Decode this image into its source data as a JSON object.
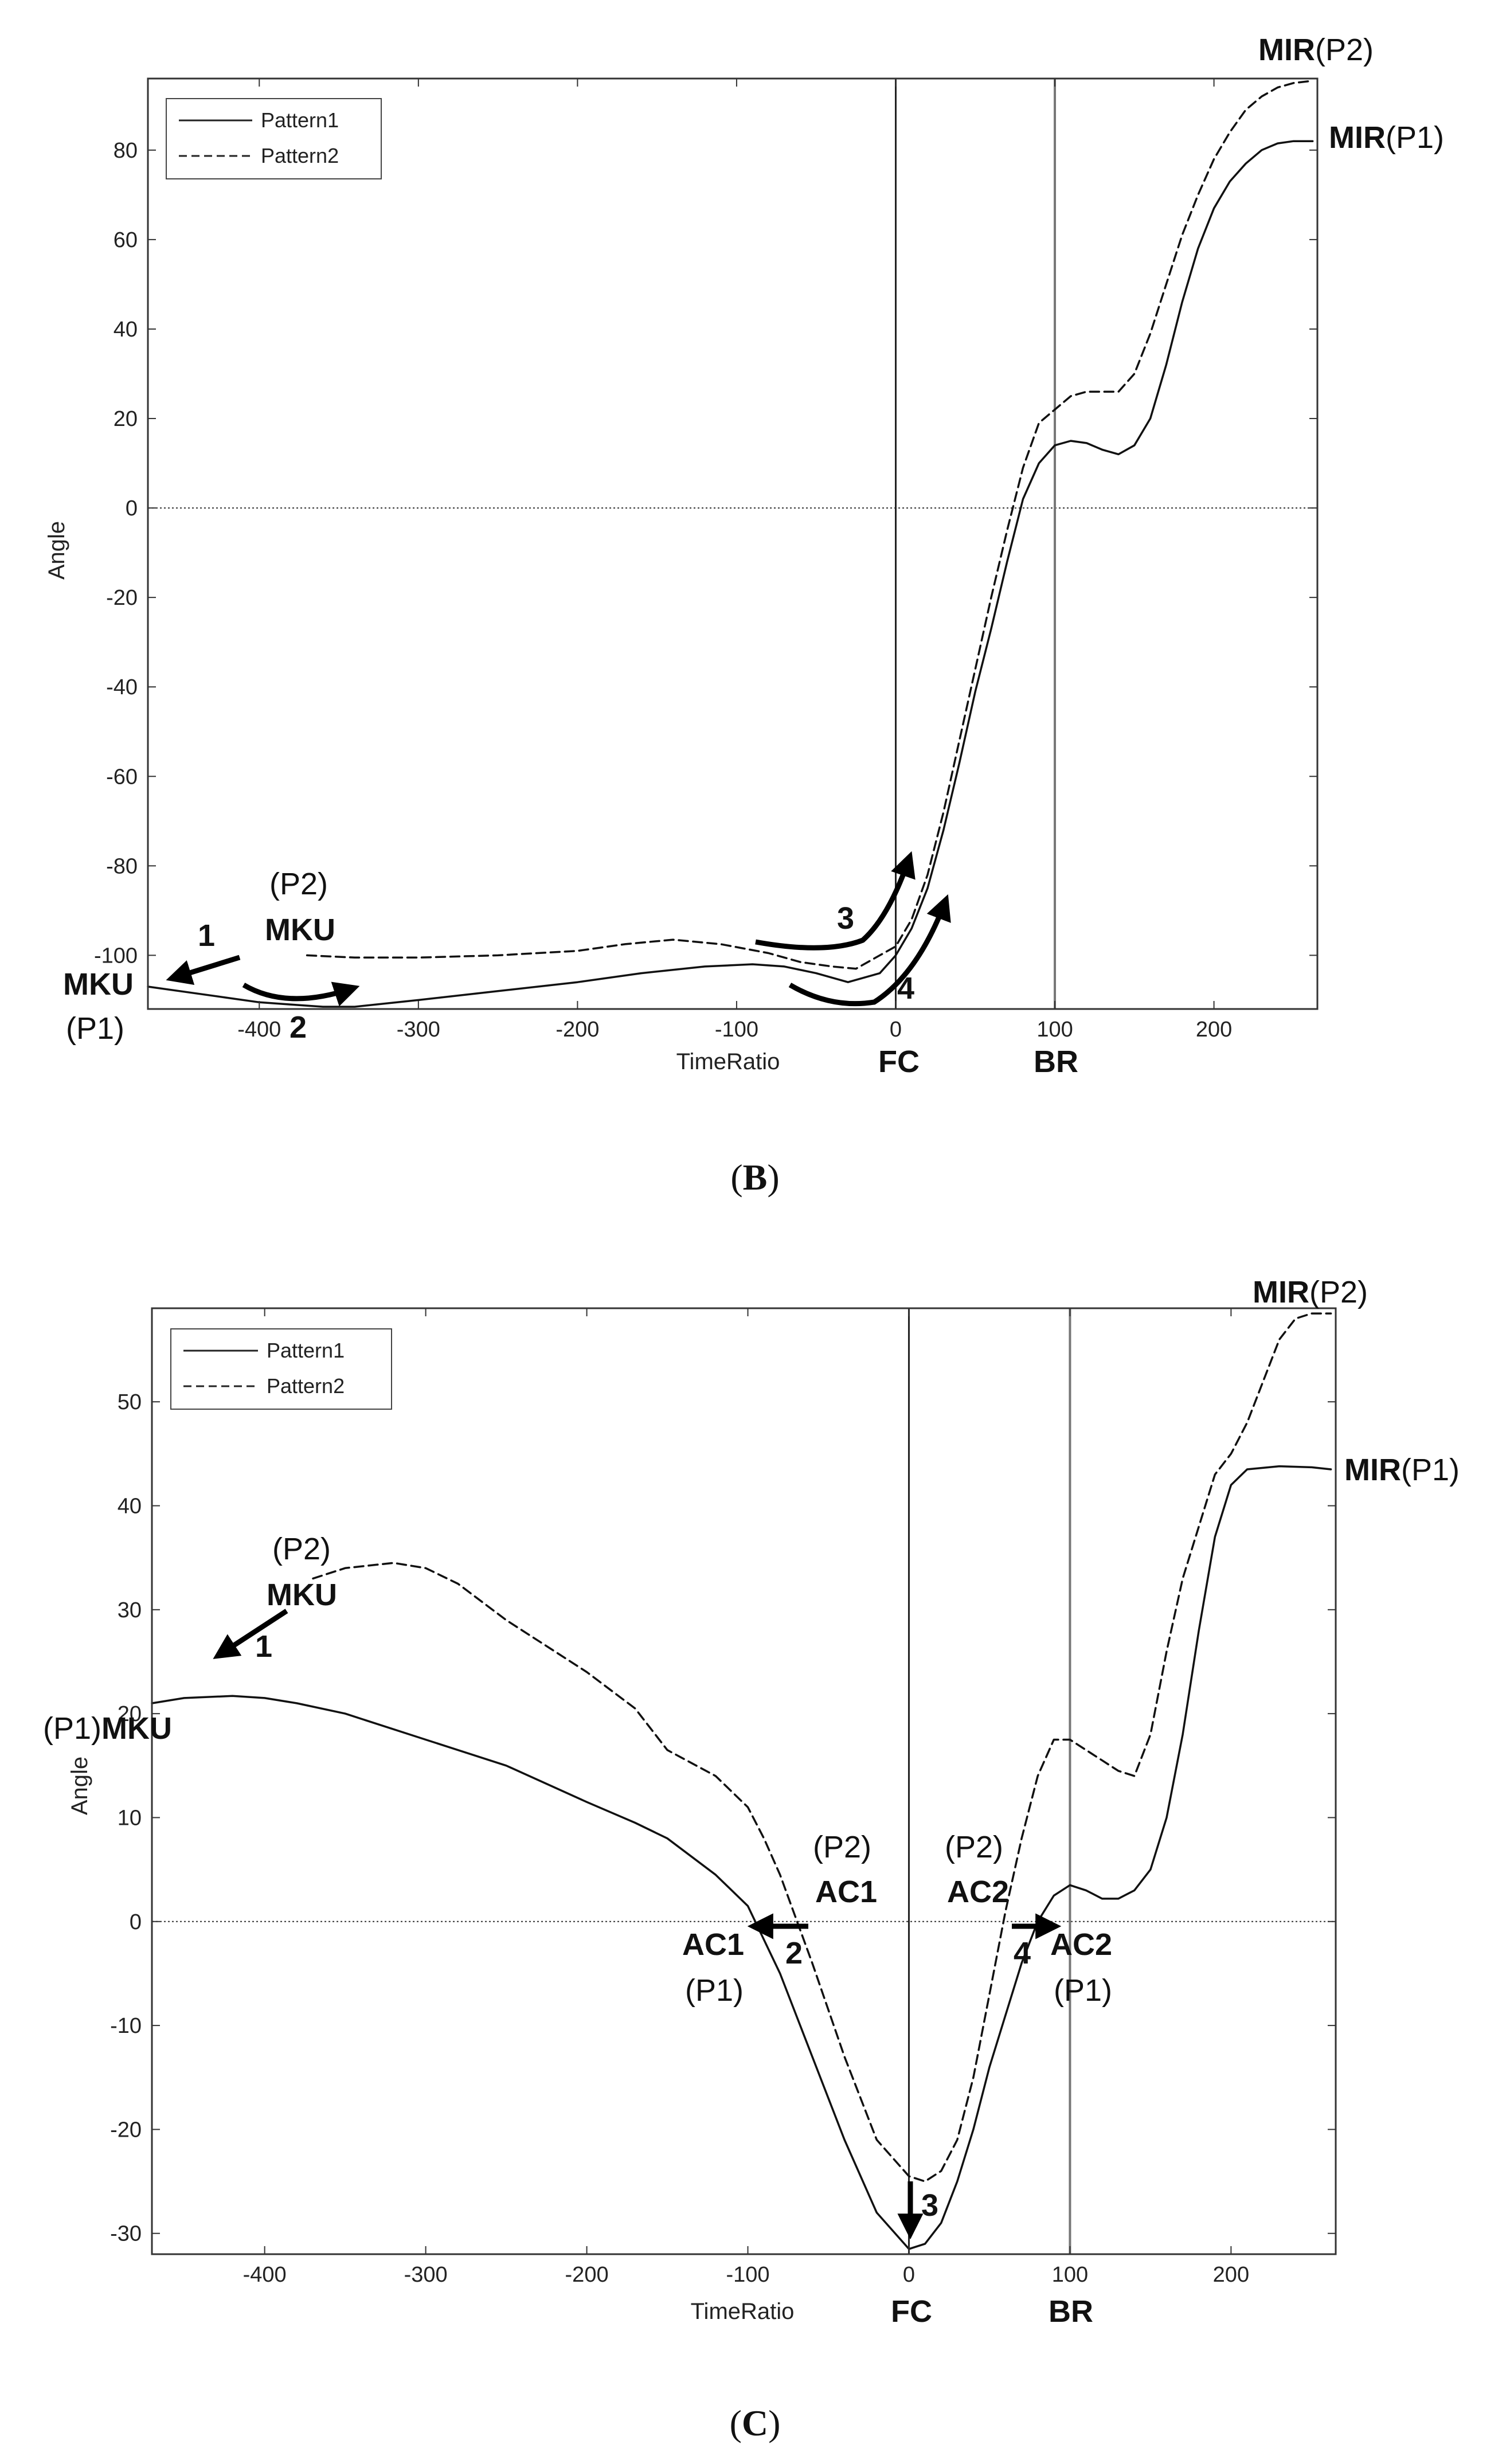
{
  "panels": [
    {
      "caption_letter": "B",
      "chart_data": {
        "type": "line",
        "xlabel": "TimeRatio",
        "ylabel": "Angle",
        "xlim": [
          -470,
          265
        ],
        "ylim": [
          -112,
          96
        ],
        "xticks": [
          -400,
          -300,
          -200,
          -100,
          0,
          100,
          200
        ],
        "yticks": [
          80,
          60,
          40,
          20,
          0,
          -20,
          -40,
          -60,
          -80,
          -100
        ],
        "vlines": [
          {
            "x": 0,
            "label": "FC"
          },
          {
            "x": 100,
            "label": "BR"
          }
        ],
        "hline_y": 0,
        "legend": {
          "position": "top-left",
          "entries": [
            "Pattern1",
            "Pattern2"
          ]
        },
        "series": [
          {
            "name": "Pattern1",
            "style": "solid",
            "x": [
              -470,
              -440,
              -420,
              -400,
              -380,
              -360,
              -340,
              -300,
              -250,
              -200,
              -160,
              -120,
              -90,
              -70,
              -50,
              -30,
              -10,
              0,
              10,
              20,
              30,
              40,
              50,
              60,
              70,
              80,
              90,
              100,
              110,
              120,
              130,
              140,
              150,
              160,
              170,
              180,
              190,
              200,
              210,
              220,
              230,
              240,
              250,
              262
            ],
            "y": [
              -107,
              -108.5,
              -109.5,
              -110.5,
              -111,
              -111.5,
              -111.5,
              -110,
              -108,
              -106,
              -104,
              -102.5,
              -102,
              -102.5,
              -104,
              -106,
              -104,
              -100,
              -94,
              -85,
              -72,
              -57,
              -41,
              -27,
              -12,
              2,
              10,
              14,
              15,
              14.5,
              13,
              12,
              14,
              20,
              32,
              46,
              58,
              67,
              73,
              77,
              80,
              81.5,
              82,
              82
            ]
          },
          {
            "name": "Pattern2",
            "style": "dashed",
            "x": [
              -370,
              -340,
              -300,
              -250,
              -200,
              -170,
              -140,
              -110,
              -80,
              -60,
              -40,
              -25,
              -10,
              0,
              10,
              20,
              30,
              40,
              50,
              60,
              70,
              80,
              90,
              100,
              110,
              120,
              130,
              140,
              150,
              160,
              170,
              180,
              190,
              200,
              210,
              220,
              230,
              240,
              250,
              262
            ],
            "y": [
              -100,
              -100.5,
              -100.5,
              -100,
              -99,
              -97.5,
              -96.5,
              -97.5,
              -99.5,
              -101.5,
              -102.5,
              -103,
              -100,
              -98,
              -92,
              -82,
              -68,
              -52,
              -36,
              -20,
              -5,
              9,
              19,
              22,
              25,
              26,
              26,
              26,
              30,
              39,
              50,
              61,
              70,
              78,
              84,
              89,
              92,
              94,
              95,
              95.5
            ]
          }
        ],
        "annotations": [
          {
            "label": "MIR",
            "suffix": "(P2)"
          },
          {
            "label": "MIR",
            "suffix": "(P1)"
          },
          {
            "label": "MKU",
            "suffix": "(P1)"
          },
          {
            "prefix": "(P2)",
            "label": "MKU"
          },
          {
            "number": "1"
          },
          {
            "number": "2"
          },
          {
            "number": "3"
          },
          {
            "number": "4"
          }
        ]
      }
    },
    {
      "caption_letter": "C",
      "chart_data": {
        "type": "line",
        "xlabel": "TimeRatio",
        "ylabel": "Angle",
        "xlim": [
          -470,
          265
        ],
        "ylim": [
          -32,
          59
        ],
        "xticks": [
          -400,
          -300,
          -200,
          -100,
          0,
          100,
          200
        ],
        "yticks": [
          50,
          40,
          30,
          20,
          10,
          0,
          -10,
          -20,
          -30
        ],
        "vlines": [
          {
            "x": 0,
            "label": "FC"
          },
          {
            "x": 100,
            "label": "BR"
          }
        ],
        "hline_y": 0,
        "legend": {
          "position": "top-left",
          "entries": [
            "Pattern1",
            "Pattern2"
          ]
        },
        "series": [
          {
            "name": "Pattern1",
            "style": "solid",
            "x": [
              -470,
              -450,
              -420,
              -400,
              -380,
              -350,
              -300,
              -250,
              -200,
              -170,
              -150,
              -120,
              -100,
              -80,
              -60,
              -40,
              -20,
              0,
              10,
              20,
              30,
              40,
              50,
              60,
              70,
              80,
              90,
              100,
              110,
              120,
              130,
              140,
              150,
              160,
              170,
              180,
              190,
              200,
              210,
              230,
              250,
              262
            ],
            "y": [
              21,
              21.5,
              21.7,
              21.5,
              21,
              20,
              17.5,
              15,
              11.5,
              9.5,
              8,
              4.5,
              1.5,
              -5,
              -13,
              -21,
              -28,
              -31.5,
              -31,
              -29,
              -25,
              -20,
              -14,
              -9,
              -4,
              0,
              2.5,
              3.5,
              3,
              2.2,
              2.2,
              3,
              5,
              10,
              18,
              28,
              37,
              42,
              43.5,
              43.8,
              43.7,
              43.5
            ]
          },
          {
            "name": "Pattern2",
            "style": "dashed",
            "x": [
              -370,
              -350,
              -320,
              -300,
              -280,
              -250,
              -200,
              -170,
              -150,
              -120,
              -100,
              -90,
              -80,
              -60,
              -40,
              -20,
              0,
              10,
              20,
              30,
              40,
              50,
              60,
              70,
              80,
              90,
              100,
              110,
              120,
              130,
              140,
              150,
              160,
              170,
              180,
              190,
              200,
              210,
              220,
              230,
              240,
              250,
              262
            ],
            "y": [
              33,
              34,
              34.5,
              34,
              32.5,
              29,
              24,
              20.5,
              16.5,
              14,
              11,
              8,
              4.5,
              -4,
              -13,
              -21,
              -24.5,
              -25,
              -24,
              -21,
              -15,
              -7,
              1,
              8,
              14,
              17.5,
              17.5,
              16.5,
              15.5,
              14.5,
              14,
              18,
              26,
              33,
              38,
              43,
              45,
              48,
              52,
              56,
              58,
              58.5,
              58.5
            ]
          }
        ],
        "annotations": [
          {
            "label": "MIR",
            "suffix": "(P2)"
          },
          {
            "label": "MIR",
            "suffix": "(P1)"
          },
          {
            "prefix": "(P1)",
            "label": "MKU"
          },
          {
            "prefix": "(P2)",
            "label": "MKU"
          },
          {
            "prefix": "(P2)",
            "label": "AC1"
          },
          {
            "label": "AC1",
            "suffix": "(P1)"
          },
          {
            "prefix": "(P2)",
            "label": "AC2"
          },
          {
            "label": "AC2",
            "suffix": "(P1)"
          },
          {
            "number": "1"
          },
          {
            "number": "2"
          },
          {
            "number": "3"
          },
          {
            "number": "4"
          }
        ]
      }
    }
  ]
}
